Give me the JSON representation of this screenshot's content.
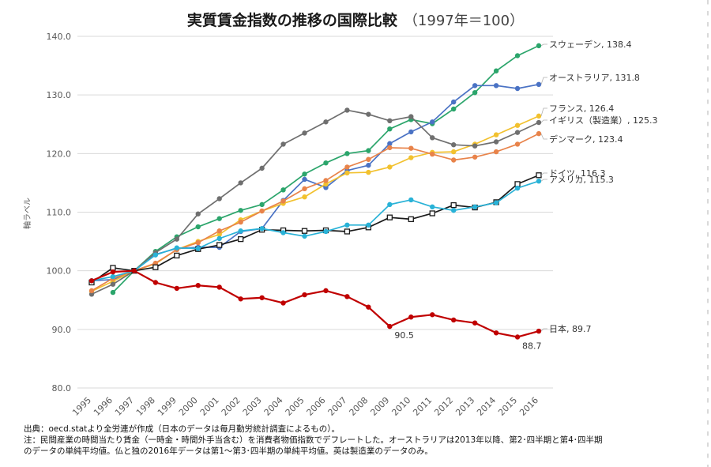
{
  "chart_data": {
    "type": "line",
    "title": "実質賃金指数の推移の国際比較",
    "subtitle": "（1997年＝100）",
    "ylabel": "軸ラベル",
    "xlabel": "",
    "ylim": [
      80,
      140
    ],
    "yticks": [
      "80.0",
      "90.0",
      "100.0",
      "110.0",
      "120.0",
      "130.0",
      "140.0"
    ],
    "grid": true,
    "legend": "end-labels",
    "categories": [
      "1995",
      "1996",
      "1997",
      "1998",
      "1999",
      "2000",
      "2001",
      "2002",
      "2003",
      "2004",
      "2005",
      "2006",
      "2007",
      "2008",
      "2009",
      "2010",
      "2011",
      "2012",
      "2013",
      "2014",
      "2015",
      "2016"
    ],
    "series": [
      {
        "name": "スウェーデン",
        "end_label": "スウェーデン, 138.4",
        "color": "#2ba56b",
        "marker": "circle",
        "start": 1,
        "values": [
          null,
          96.3,
          100,
          103.3,
          105.8,
          107.5,
          108.9,
          110.3,
          111.3,
          113.8,
          116.5,
          118.4,
          120.0,
          120.5,
          124.2,
          125.8,
          125.1,
          127.6,
          130.4,
          134.1,
          136.7,
          138.4
        ]
      },
      {
        "name": "オーストラリア",
        "end_label": "オーストラリア, 131.8",
        "color": "#4a72c4",
        "marker": "circle",
        "start": 0,
        "values": [
          98.3,
          98.5,
          100,
          102.8,
          103.8,
          104.0,
          104.0,
          106.7,
          107.2,
          112.0,
          115.6,
          114.2,
          117.1,
          118.0,
          121.7,
          123.7,
          125.4,
          128.8,
          131.6,
          131.6,
          131.1,
          131.8
        ]
      },
      {
        "name": "フランス",
        "end_label": "フランス, 126.4",
        "color": "#f2c12e",
        "marker": "circle",
        "start": 0,
        "values": [
          96.5,
          98.2,
          100,
          101.2,
          103.6,
          105.0,
          106.2,
          108.7,
          110.2,
          111.5,
          112.6,
          114.8,
          116.7,
          116.8,
          117.7,
          119.3,
          120.2,
          120.3,
          121.6,
          123.2,
          124.8,
          126.4
        ]
      },
      {
        "name": "イギリス（製造業）",
        "end_label": "イギリス（製造業）, 125.3",
        "color": "#6f6f6f",
        "marker": "circle",
        "start": 0,
        "values": [
          96.0,
          97.7,
          100,
          103.1,
          105.4,
          109.7,
          112.3,
          115.0,
          117.5,
          121.6,
          123.5,
          125.4,
          127.4,
          126.7,
          125.6,
          126.3,
          122.7,
          121.5,
          121.3,
          122.0,
          123.6,
          125.3
        ]
      },
      {
        "name": "デンマーク",
        "end_label": "デンマーク, 123.4",
        "color": "#e8834a",
        "marker": "circle",
        "start": 0,
        "values": [
          96.6,
          98.7,
          100,
          101.3,
          103.6,
          104.8,
          106.8,
          108.3,
          110.2,
          111.9,
          114.0,
          115.4,
          117.7,
          119.0,
          121.0,
          120.9,
          119.9,
          118.9,
          119.4,
          120.3,
          121.6,
          123.4
        ]
      },
      {
        "name": "ドイツ",
        "end_label": "ドイツ, 116.3",
        "color": "#1a1a1a",
        "marker": "square",
        "start": 0,
        "values": [
          98.0,
          100.5,
          100,
          100.6,
          102.6,
          103.7,
          104.4,
          105.4,
          107.0,
          106.9,
          106.8,
          106.9,
          106.7,
          107.4,
          109.1,
          108.8,
          109.8,
          111.2,
          110.8,
          111.7,
          114.8,
          116.3
        ]
      },
      {
        "name": "アメリカ",
        "end_label": "アメリカ, 115.3",
        "color": "#29b2d7",
        "marker": "circle",
        "start": 0,
        "values": [
          98.3,
          99.0,
          100,
          102.7,
          103.9,
          103.8,
          105.5,
          106.8,
          107.2,
          106.5,
          105.9,
          106.7,
          107.8,
          107.8,
          111.3,
          112.1,
          110.9,
          110.3,
          110.9,
          111.6,
          114.1,
          115.3
        ]
      },
      {
        "name": "日本",
        "end_label": "日本, 89.7",
        "color": "#c00000",
        "marker": "circle",
        "start": 0,
        "values": [
          98.3,
          99.8,
          100,
          98.0,
          97.0,
          97.5,
          97.2,
          95.2,
          95.4,
          94.5,
          95.9,
          96.6,
          95.6,
          93.8,
          90.5,
          92.1,
          92.5,
          91.6,
          91.1,
          89.4,
          88.7,
          89.7
        ]
      }
    ],
    "annotations": [
      {
        "text": "90.5",
        "series": "日本",
        "year": "2009"
      },
      {
        "text": "88.7",
        "series": "日本",
        "year": "2015"
      }
    ]
  },
  "footnotes": [
    "出典：oecd.statより全労連が作成（日本のデータは毎月勤労統計調査によるもの）。",
    "注：民間産業の時間当たり賃金（一時金・時間外手当含む）を消費者物価指数でデフレートした。オーストラリアは2013年以降、第2･四半期と第4･四半期",
    "のデータの単純平均値。仏と独の2016年データは第1～第3･四半期の単純平均値。英は製造業のデータのみ。"
  ]
}
